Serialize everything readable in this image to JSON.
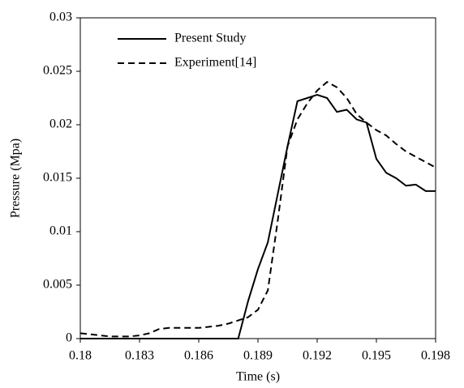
{
  "chart_data": {
    "type": "line",
    "x_label": "Time (s)",
    "y_label": "Pressure (Mpa)",
    "x": [
      0.18,
      0.1805,
      0.181,
      0.1815,
      0.182,
      0.1825,
      0.183,
      0.1835,
      0.184,
      0.1845,
      0.185,
      0.1855,
      0.186,
      0.1865,
      0.187,
      0.1875,
      0.188,
      0.1885,
      0.189,
      0.1895,
      0.19,
      0.1905,
      0.191,
      0.1915,
      0.192,
      0.1925,
      0.193,
      0.1935,
      0.194,
      0.1945,
      0.195,
      0.1955,
      0.196,
      0.1965,
      0.197,
      0.1975,
      0.198
    ],
    "series": [
      {
        "name": "Present Study",
        "color": "#000000",
        "style": "solid",
        "values": [
          0,
          0,
          0,
          0,
          0,
          0,
          0,
          0,
          0,
          0,
          0,
          0,
          0,
          0,
          0,
          0,
          0,
          0.0035,
          0.0065,
          0.009,
          0.0135,
          0.018,
          0.0222,
          0.0225,
          0.0228,
          0.0225,
          0.0212,
          0.0214,
          0.0205,
          0.0202,
          0.0168,
          0.0155,
          0.015,
          0.0143,
          0.0144,
          0.0138,
          0.0138
        ]
      },
      {
        "name": "Experiment[14]",
        "color": "#000000",
        "style": "dashed",
        "values": [
          0.0005,
          0.0004,
          0.0003,
          0.0002,
          0.0002,
          0.0002,
          0.0003,
          0.0005,
          0.0009,
          0.001,
          0.001,
          0.001,
          0.001,
          0.0011,
          0.0012,
          0.0014,
          0.0017,
          0.002,
          0.0027,
          0.0045,
          0.011,
          0.018,
          0.0205,
          0.022,
          0.0232,
          0.024,
          0.0235,
          0.0225,
          0.021,
          0.0202,
          0.0195,
          0.019,
          0.0182,
          0.0175,
          0.017,
          0.0165,
          0.016
        ]
      }
    ],
    "xlim": [
      0.18,
      0.198
    ],
    "xticks": [
      0.18,
      0.183,
      0.186,
      0.189,
      0.192,
      0.195,
      0.198
    ],
    "ylim": [
      0,
      0.03
    ],
    "yticks": [
      0,
      0.005,
      0.01,
      0.015,
      0.02,
      0.025,
      0.03
    ],
    "grid": false,
    "legend": "upper left"
  }
}
